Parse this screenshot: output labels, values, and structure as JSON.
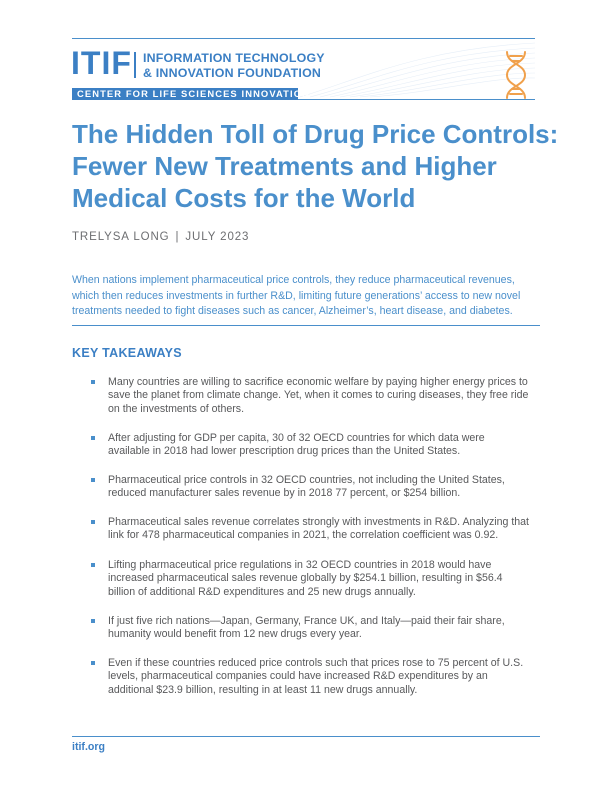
{
  "header": {
    "logo_mark": "ITIF",
    "org_name_line1": "INFORMATION TECHNOLOGY",
    "org_name_line2": "& INNOVATION FOUNDATION",
    "center_name": "CENTER FOR LIFE SCIENCES INNOVATION",
    "icon": "dna-icon",
    "colors": {
      "brand_blue": "#3b7fc4",
      "title_blue": "#4a8fcb",
      "accent_orange": "#f0a04b",
      "body_gray": "#58595b"
    }
  },
  "title": {
    "line1": "The Hidden Toll of Drug Price Controls:",
    "line2": "Fewer New Treatments and Higher",
    "line3": "Medical Costs for the World"
  },
  "byline": {
    "author": "TRELYSA LONG",
    "separator": "|",
    "date": "JULY 2023"
  },
  "abstract": {
    "line1": "When nations implement pharmaceutical price controls, they reduce pharmaceutical revenues,",
    "line2": "which then reduces investments in further R&D, limiting future generations’ access to new novel",
    "line3": "treatments needed to fight diseases such as cancer, Alzheimer’s, heart disease, and diabetes."
  },
  "key_takeaways": {
    "heading": "KEY TAKEAWAYS",
    "items": [
      {
        "lines": [
          "Many countries are willing to sacrifice economic welfare by paying higher energy prices to",
          "save the planet from climate change. Yet, when it comes to curing diseases, they free ride",
          "on the investments of others."
        ]
      },
      {
        "lines": [
          "After adjusting for GDP per capita, 30 of 32 OECD countries for which data were",
          "available in 2018 had lower prescription drug prices than the United States."
        ]
      },
      {
        "lines": [
          "Pharmaceutical price controls in 32 OECD countries, not including the United States,",
          "reduced manufacturer sales revenue by in 2018 77 percent, or $254 billion."
        ]
      },
      {
        "lines": [
          "Pharmaceutical sales revenue correlates strongly with investments in R&D. Analyzing that",
          "link for 478 pharmaceutical companies in 2021, the correlation coefficient was 0.92."
        ]
      },
      {
        "lines": [
          "Lifting pharmaceutical price regulations in 32 OECD countries in 2018 would have",
          "increased pharmaceutical sales revenue globally by $254.1 billion, resulting in $56.4",
          "billion of additional R&D expenditures and 25 new drugs annually."
        ]
      },
      {
        "lines": [
          "If just five rich nations—Japan, Germany, France UK, and Italy—paid their fair share,",
          "humanity would benefit from 12 new drugs every year."
        ]
      },
      {
        "lines": [
          "Even if these countries reduced price controls such that prices rose to 75 percent of U.S.",
          "levels, pharmaceutical companies could have increased R&D expenditures by an",
          "additional $23.9 billion, resulting in at least 11 new drugs annually."
        ]
      }
    ]
  },
  "footer": {
    "url": "itif.org"
  }
}
